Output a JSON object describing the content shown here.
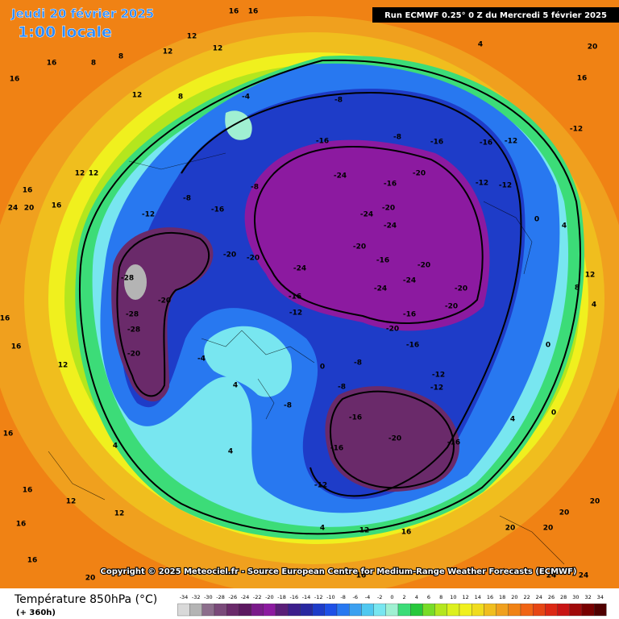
{
  "header": {
    "date": "Jeudi 20 février 2025",
    "time": "1:00 locale",
    "run": "Run ECMWF 0.25° 0 Z du Mercredi 5 février 2025"
  },
  "footer": {
    "copyright": "Copyright © 2025 Meteociel.fr - Source European Centre for Medium-Range Weather Forecasts (ECMWF)"
  },
  "legend": {
    "title": "Température 850hPa (°C)",
    "lead": "(+ 360h)",
    "ticks": [
      -34,
      -32,
      -30,
      -28,
      -26,
      -24,
      -22,
      -20,
      -18,
      -16,
      -14,
      -12,
      -10,
      -8,
      -6,
      -4,
      -2,
      0,
      2,
      4,
      6,
      8,
      10,
      12,
      14,
      16,
      18,
      20,
      22,
      24,
      26,
      28,
      30,
      32,
      34
    ],
    "colors": [
      "#d9d9d9",
      "#b4b4b4",
      "#8c6e8c",
      "#7a4a7a",
      "#6a2a6a",
      "#5c1860",
      "#7a1a8a",
      "#8c1aa0",
      "#5a1e78",
      "#3c1e8c",
      "#2828a0",
      "#1e3cc8",
      "#1e50e6",
      "#2878f0",
      "#3ca0f0",
      "#50c8f0",
      "#78e6f0",
      "#a0f0d2",
      "#3cdc78",
      "#28c83c",
      "#78dc28",
      "#b4e61e",
      "#dcf01e",
      "#f0f01e",
      "#f0dc1e",
      "#f0be1e",
      "#f0a01e",
      "#f08214",
      "#f06414",
      "#e64614",
      "#dc2814",
      "#c81414",
      "#a00a0a",
      "#780000",
      "#500000"
    ]
  },
  "map": {
    "labels": [
      16,
      16,
      12,
      12,
      12,
      8,
      8,
      16,
      16,
      12,
      8,
      -4,
      -8,
      -16,
      -8,
      -16,
      -16,
      -12,
      -12,
      16,
      20,
      4,
      -24,
      -16,
      -24,
      -20,
      -24,
      -12,
      -12,
      -20,
      -24,
      -20,
      -20,
      -20,
      -16,
      -20,
      -24,
      -24,
      -20,
      -20,
      -16,
      -20,
      -16,
      -12,
      -28,
      -28,
      -28,
      -20,
      -20,
      -8,
      -8,
      -16,
      -12,
      16,
      20,
      24,
      16,
      12,
      12,
      -4,
      4,
      0,
      -8,
      -8,
      -8,
      -16,
      -12,
      -12,
      -16,
      -20,
      -16,
      -16,
      -12,
      4,
      4,
      16,
      16,
      12,
      12,
      16,
      4,
      12,
      16,
      20,
      20,
      20,
      20,
      0,
      4,
      4,
      8,
      12,
      0,
      0,
      4,
      16,
      12,
      16,
      24,
      24,
      16,
      20,
      16
    ]
  }
}
